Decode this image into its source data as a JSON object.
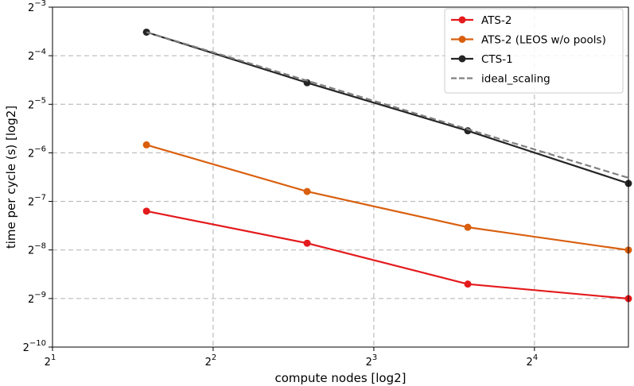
{
  "chart_data": {
    "type": "line",
    "title": "",
    "xlabel": "compute nodes [log2]",
    "ylabel": "time per cycle (s) [log2]",
    "x_scale": "log2",
    "y_scale": "log2",
    "xlim": [
      2,
      24
    ],
    "ylim": [
      0.0009765625,
      0.125
    ],
    "x_ticks": [
      {
        "value": 2,
        "base": "2",
        "exp": "1"
      },
      {
        "value": 4,
        "base": "2",
        "exp": "2"
      },
      {
        "value": 8,
        "base": "2",
        "exp": "3"
      },
      {
        "value": 16,
        "base": "2",
        "exp": "4"
      }
    ],
    "y_ticks": [
      {
        "value": 0.125,
        "base": "2",
        "exp": "−3"
      },
      {
        "value": 0.0625,
        "base": "2",
        "exp": "−4"
      },
      {
        "value": 0.03125,
        "base": "2",
        "exp": "−5"
      },
      {
        "value": 0.015625,
        "base": "2",
        "exp": "−6"
      },
      {
        "value": 0.0078125,
        "base": "2",
        "exp": "−7"
      },
      {
        "value": 0.00390625,
        "base": "2",
        "exp": "−8"
      },
      {
        "value": 0.001953125,
        "base": "2",
        "exp": "−9"
      },
      {
        "value": 0.0009765625,
        "base": "2",
        "exp": "−10"
      }
    ],
    "grid": true,
    "legend_position": "top-right",
    "x": [
      3,
      6,
      12,
      24
    ],
    "series": [
      {
        "name": "ATS-2",
        "values": [
          0.0068,
          0.0043,
          0.0024,
          0.00195
        ],
        "color": "#e41a1c",
        "marker": "circle",
        "dash": "solid"
      },
      {
        "name": "ATS-2 (LEOS w/o pools)",
        "values": [
          0.0175,
          0.009,
          0.0054,
          0.0039
        ],
        "color": "#d95f0e",
        "marker": "circle",
        "dash": "solid"
      },
      {
        "name": "CTS-1",
        "values": [
          0.0875,
          0.0425,
          0.0214,
          0.0101
        ],
        "color": "#252525",
        "marker": "circle",
        "dash": "solid"
      },
      {
        "name": "ideal_scaling",
        "values": [
          0.0875,
          0.04375,
          0.021875,
          0.0109375
        ],
        "color": "#808080",
        "marker": "none",
        "dash": "dashed"
      }
    ]
  }
}
